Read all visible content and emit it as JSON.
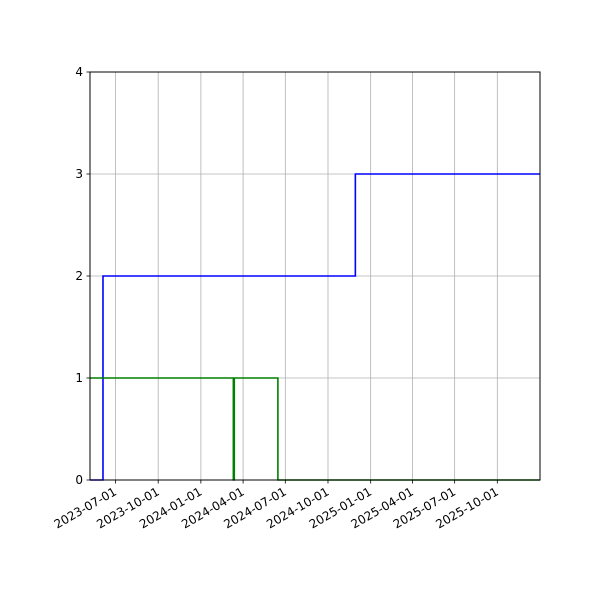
{
  "chart_data": {
    "type": "line",
    "step": true,
    "title": "",
    "xlabel": "",
    "ylabel": "",
    "xlim": [
      "2023-05-07",
      "2026-01-01"
    ],
    "ylim": [
      0,
      4
    ],
    "grid": true,
    "legend": "none",
    "x_ticks": [
      "2023-07-01",
      "2023-10-01",
      "2024-01-01",
      "2024-04-01",
      "2024-07-01",
      "2024-10-01",
      "2025-01-01",
      "2025-04-01",
      "2025-07-01",
      "2025-10-01"
    ],
    "y_ticks": [
      0,
      1,
      2,
      3,
      4
    ],
    "series": [
      {
        "color": "#0000ff",
        "points": [
          {
            "x": "2023-05-07",
            "y": 0
          },
          {
            "x": "2023-06-04",
            "y": 0
          },
          {
            "x": "2023-06-04",
            "y": 2
          },
          {
            "x": "2024-11-29",
            "y": 2
          },
          {
            "x": "2024-11-29",
            "y": 3
          },
          {
            "x": "2026-01-01",
            "y": 3
          }
        ]
      },
      {
        "color": "#008000",
        "points": [
          {
            "x": "2023-05-07",
            "y": 1
          },
          {
            "x": "2024-03-11",
            "y": 1
          },
          {
            "x": "2024-03-11",
            "y": 0
          },
          {
            "x": "2024-03-13",
            "y": 0
          },
          {
            "x": "2024-03-13",
            "y": 1
          },
          {
            "x": "2024-06-15",
            "y": 1
          },
          {
            "x": "2024-06-15",
            "y": 0
          },
          {
            "x": "2026-01-01",
            "y": 0
          }
        ]
      }
    ]
  }
}
